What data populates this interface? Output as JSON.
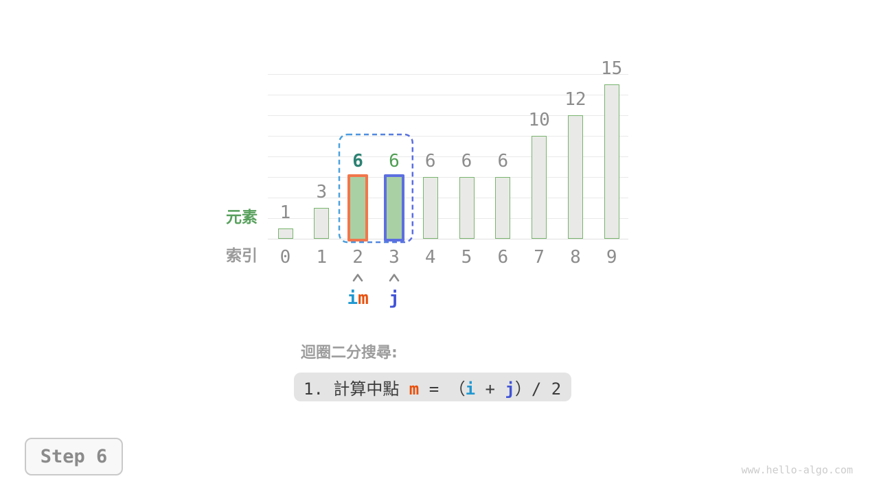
{
  "colors": {
    "grid": "#e9e9e9",
    "axis": "#e0e0e0",
    "bar_fill": "#e9eae7",
    "bar_border": "#79b46d",
    "num": "#8c8c8c",
    "element_green": "#57a05c",
    "row_gray": "#9a9a9a",
    "caret": "#8a8a8a",
    "caption": "#9c9c9c",
    "formula_bg": "#e4e4e4",
    "formula_text": "#3b3b3b",
    "step_border": "#c9c9c9",
    "step_bg": "#f8f8f8",
    "step_text": "#8b8b8b",
    "watermark": "#cccccc",
    "pointer_i": "#2098d1",
    "pointer_j": "#4053d6",
    "pointer_m": "#e8500c"
  },
  "chart_data": {
    "type": "bar",
    "title": "",
    "xlabel": "",
    "ylabel": "",
    "categories": [
      "0",
      "1",
      "2",
      "3",
      "4",
      "5",
      "6",
      "7",
      "8",
      "9"
    ],
    "values": [
      1,
      3,
      6,
      6,
      6,
      6,
      6,
      10,
      12,
      15
    ],
    "ylim": [
      0,
      16
    ],
    "gridline_step": 2,
    "grid": true,
    "legend": "none",
    "row_labels": {
      "element": "元素",
      "index": "索引"
    },
    "highlights": [
      {
        "index": 2,
        "border_color": "#f2764b",
        "fill": "#a9d0a4",
        "value_color": "#2c8172",
        "value_bold": true
      },
      {
        "index": 3,
        "border_color": "#5c6fe0",
        "fill": "#a9d0a4",
        "value_color": "#4f9e53",
        "value_bold": false
      }
    ],
    "window": {
      "start_index": 2,
      "end_index": 3,
      "color_left": "#49a2de",
      "color_right": "#5b6ee0"
    },
    "pointers": [
      {
        "index": 2,
        "parts": [
          {
            "text": "i",
            "color": "#2098d1"
          },
          {
            "text": "m",
            "color": "#e8500c"
          }
        ]
      },
      {
        "index": 3,
        "parts": [
          {
            "text": "j",
            "color": "#4053d6"
          }
        ]
      }
    ]
  },
  "caption": {
    "text": "迴圈二分搜尋:"
  },
  "formula": {
    "segments": [
      {
        "text": "1. 計算中點 ",
        "color": "#3b3b3b",
        "bold": false
      },
      {
        "text": "m",
        "color": "#e8500c",
        "bold": true
      },
      {
        "text": " = （",
        "color": "#3b3b3b",
        "bold": false
      },
      {
        "text": "i",
        "color": "#2098d1",
        "bold": true
      },
      {
        "text": " + ",
        "color": "#3b3b3b",
        "bold": false
      },
      {
        "text": "j",
        "color": "#4053d6",
        "bold": true
      },
      {
        "text": "）/ 2",
        "color": "#3b3b3b",
        "bold": false
      }
    ]
  },
  "step_badge": {
    "label": "Step 6"
  },
  "watermark": {
    "text": "www.hello-algo.com"
  }
}
